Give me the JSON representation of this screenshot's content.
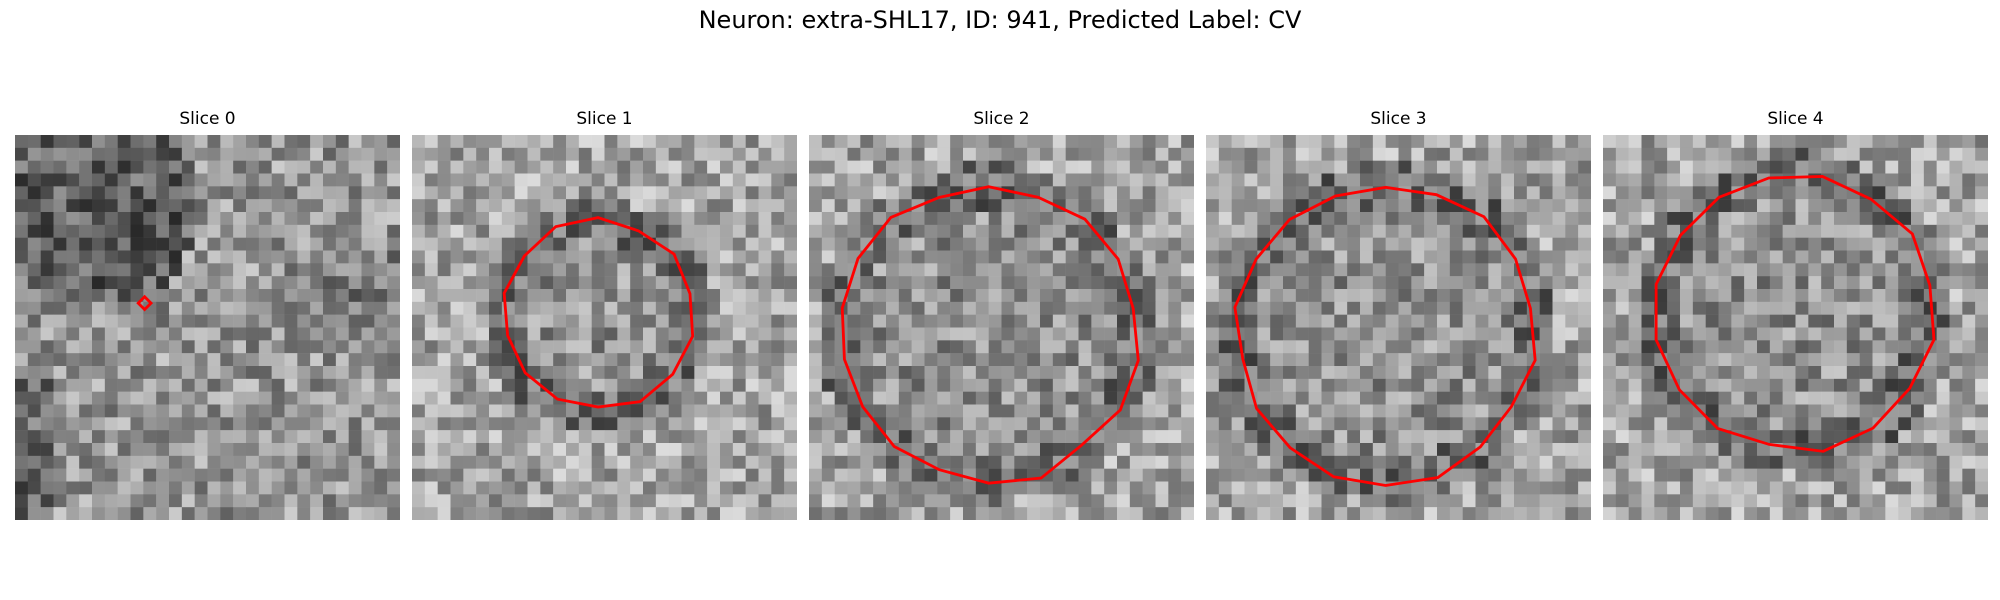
{
  "figure": {
    "title": "Neuron: extra-SHL17, ID: 941, Predicted Label: CV"
  },
  "contour_color": "#ff0000",
  "panels": [
    {
      "title": "Slice 0",
      "contour": "point"
    },
    {
      "title": "Slice 1",
      "contour": "small-ring"
    },
    {
      "title": "Slice 2",
      "contour": "large-ring"
    },
    {
      "title": "Slice 3",
      "contour": "large-ring"
    },
    {
      "title": "Slice 4",
      "contour": "medium-ring"
    }
  ]
}
